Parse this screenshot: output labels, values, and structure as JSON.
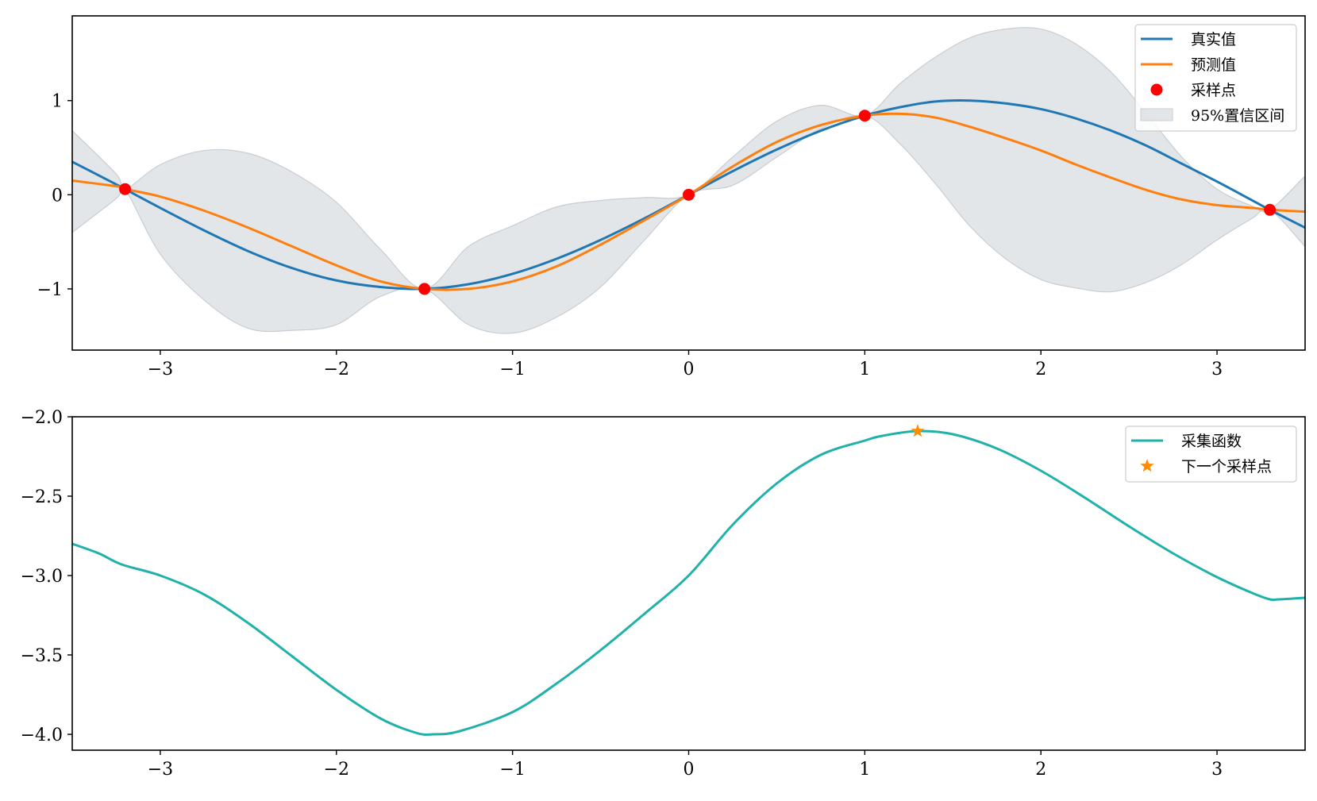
{
  "chart_data": [
    {
      "type": "line",
      "xlim": [
        -3.5,
        3.5
      ],
      "ylim": [
        -1.65,
        1.9
      ],
      "xticks": [
        -3,
        -2,
        -1,
        0,
        1,
        2,
        3
      ],
      "xtick_labels": [
        "−3",
        "−2",
        "−1",
        "0",
        "1",
        "2",
        "3"
      ],
      "yticks": [
        1,
        0,
        -1
      ],
      "ytick_labels": [
        "1",
        "0",
        "−1"
      ],
      "grid": false,
      "legend_position": "top-right",
      "legend": [
        "真实值",
        "预测值",
        "采样点",
        "95%置信区间"
      ],
      "x": [
        -3.5,
        -3.25,
        -3.2,
        -3.0,
        -2.75,
        -2.5,
        -2.25,
        -2.0,
        -1.75,
        -1.5,
        -1.25,
        -1.0,
        -0.75,
        -0.5,
        -0.25,
        0.0,
        0.25,
        0.5,
        0.75,
        1.0,
        1.2,
        1.4,
        1.6,
        1.8,
        2.0,
        2.2,
        2.4,
        2.6,
        2.8,
        3.0,
        3.2,
        3.3,
        3.5
      ],
      "series": [
        {
          "name": "真实值",
          "color": "#1f77b4",
          "values": [
            0.35,
            0.11,
            0.06,
            -0.14,
            -0.38,
            -0.6,
            -0.78,
            -0.91,
            -0.98,
            -1.0,
            -0.95,
            -0.84,
            -0.68,
            -0.48,
            -0.25,
            0.0,
            0.25,
            0.48,
            0.68,
            0.84,
            0.93,
            0.99,
            1.0,
            0.97,
            0.91,
            0.81,
            0.68,
            0.52,
            0.33,
            0.14,
            -0.06,
            -0.16,
            -0.35
          ]
        },
        {
          "name": "预测值",
          "color": "#ff7f0e",
          "values": [
            0.15,
            0.09,
            0.06,
            -0.02,
            -0.17,
            -0.35,
            -0.55,
            -0.75,
            -0.92,
            -1.0,
            -1.0,
            -0.92,
            -0.76,
            -0.53,
            -0.27,
            0.0,
            0.3,
            0.56,
            0.74,
            0.84,
            0.86,
            0.82,
            0.72,
            0.6,
            0.47,
            0.32,
            0.18,
            0.05,
            -0.05,
            -0.11,
            -0.14,
            -0.16,
            -0.18
          ]
        }
      ],
      "confidence_band": {
        "name": "95%置信区间",
        "color": "#c7cdd3",
        "upper": [
          0.68,
          0.22,
          0.06,
          0.32,
          0.47,
          0.44,
          0.24,
          -0.08,
          -0.58,
          -1.0,
          -0.55,
          -0.33,
          -0.13,
          -0.06,
          -0.03,
          0.0,
          0.4,
          0.78,
          0.95,
          0.84,
          1.18,
          1.46,
          1.67,
          1.76,
          1.76,
          1.6,
          1.3,
          0.86,
          0.4,
          0.06,
          -0.12,
          -0.16,
          0.2
        ],
        "lower": [
          -0.4,
          -0.04,
          0.06,
          -0.63,
          -1.12,
          -1.42,
          -1.44,
          -1.38,
          -1.08,
          -1.0,
          -1.38,
          -1.47,
          -1.3,
          -0.98,
          -0.48,
          0.0,
          0.1,
          0.4,
          0.7,
          0.84,
          0.54,
          0.12,
          -0.34,
          -0.68,
          -0.9,
          -0.99,
          -1.03,
          -0.93,
          -0.74,
          -0.48,
          -0.25,
          -0.16,
          -0.55
        ]
      },
      "sample_points": {
        "name": "采样点",
        "color": "#ff0000",
        "x": [
          -3.2,
          -1.5,
          0.0,
          1.0,
          3.3
        ],
        "y": [
          0.06,
          -1.0,
          0.0,
          0.84,
          -0.16
        ]
      }
    },
    {
      "type": "line",
      "xlim": [
        -3.5,
        3.5
      ],
      "ylim": [
        -4.1,
        -2.0
      ],
      "xticks": [
        -3,
        -2,
        -1,
        0,
        1,
        2,
        3
      ],
      "xtick_labels": [
        "−3",
        "−2",
        "−1",
        "0",
        "1",
        "2",
        "3"
      ],
      "yticks": [
        -2.0,
        -2.5,
        -3.0,
        -3.5,
        -4.0
      ],
      "ytick_labels": [
        "−2.0",
        "−2.5",
        "−3.0",
        "−3.5",
        "−4.0"
      ],
      "grid": false,
      "legend_position": "top-right",
      "legend": [
        "采集函数",
        "下一个采样点"
      ],
      "x": [
        -3.5,
        -3.35,
        -3.22,
        -3.0,
        -2.75,
        -2.5,
        -2.25,
        -2.0,
        -1.75,
        -1.55,
        -1.45,
        -1.3,
        -1.0,
        -0.75,
        -0.5,
        -0.25,
        0.0,
        0.25,
        0.5,
        0.75,
        1.0,
        1.1,
        1.3,
        1.5,
        1.75,
        2.0,
        2.25,
        2.5,
        2.75,
        3.0,
        3.2,
        3.3,
        3.35,
        3.5
      ],
      "series": [
        {
          "name": "采集函数",
          "color": "#20b2aa",
          "values": [
            -2.8,
            -2.86,
            -2.93,
            -3.0,
            -3.12,
            -3.3,
            -3.51,
            -3.72,
            -3.9,
            -3.99,
            -4.0,
            -3.98,
            -3.86,
            -3.68,
            -3.47,
            -3.24,
            -3.0,
            -2.68,
            -2.42,
            -2.24,
            -2.15,
            -2.12,
            -2.09,
            -2.11,
            -2.2,
            -2.34,
            -2.51,
            -2.69,
            -2.86,
            -3.01,
            -3.11,
            -3.15,
            -3.15,
            -3.14
          ]
        }
      ],
      "next_sample_point": {
        "name": "下一个采样点",
        "color": "#ff8c00",
        "x": 1.3,
        "y": -2.09
      }
    }
  ]
}
